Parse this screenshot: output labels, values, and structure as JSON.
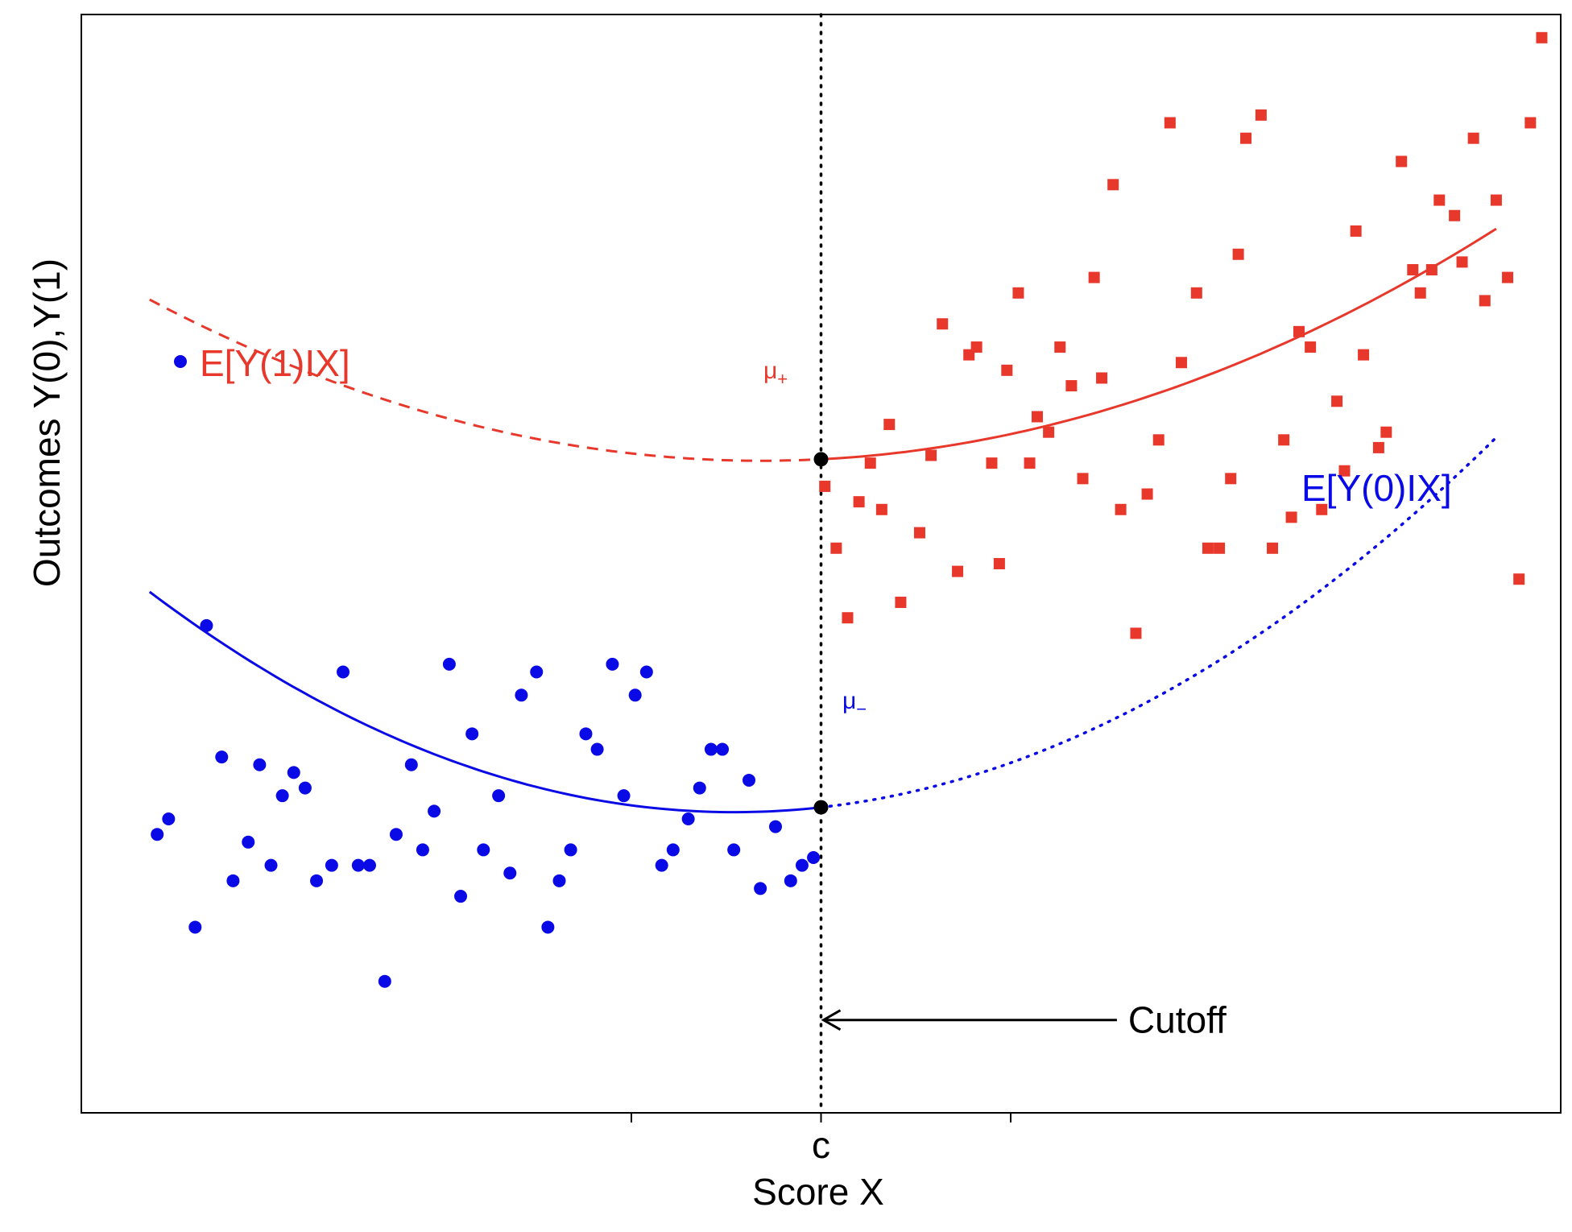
{
  "chart_data": {
    "type": "scatter",
    "title": "",
    "xlabel": "Score X",
    "ylabel": "Outcomes Y(0),Y(1)",
    "x_ticks": [
      {
        "x": -5,
        "label": ""
      },
      {
        "x": 0,
        "label": "c"
      },
      {
        "x": 5,
        "label": ""
      }
    ],
    "xlim": [
      -19.5,
      19.5
    ],
    "ylim": [
      -24,
      118
    ],
    "grid": false,
    "cutoff": {
      "x": 0,
      "label": "Cutoff",
      "arrow_from_x": 7.8,
      "y": -12
    },
    "colors": {
      "treated": "#e8382c",
      "control": "#0a0ae6",
      "black": "#000000"
    },
    "treated_points": {
      "x": [
        0.1,
        0.4,
        0.7,
        1.0,
        1.3,
        1.6,
        1.8,
        2.1,
        2.6,
        2.9,
        3.2,
        3.6,
        3.9,
        4.1,
        4.5,
        4.7,
        4.9,
        5.2,
        5.5,
        5.7,
        6.0,
        6.3,
        6.6,
        6.9,
        7.2,
        7.4,
        7.7,
        7.9,
        8.3,
        8.6,
        8.9,
        9.2,
        9.5,
        9.9,
        10.2,
        10.5,
        10.8,
        11.0,
        11.2,
        11.6,
        11.9,
        12.2,
        12.4,
        12.6,
        12.9,
        13.2,
        13.6,
        13.8,
        14.1,
        14.3,
        14.7,
        14.9,
        15.3,
        15.6,
        15.8,
        16.1,
        16.3,
        16.7,
        16.9,
        17.2,
        17.5,
        17.8,
        18.1,
        18.4,
        18.7,
        19.0
      ],
      "y": [
        57,
        49,
        40,
        55,
        60,
        54,
        65,
        42,
        51,
        61,
        78,
        46,
        74,
        75,
        60,
        47,
        72,
        82,
        60,
        66,
        64,
        75,
        70,
        58,
        84,
        71,
        96,
        54,
        38,
        56,
        63,
        104,
        73,
        82,
        49,
        49,
        58,
        87,
        102,
        105,
        49,
        63,
        53,
        77,
        75,
        54,
        68,
        59,
        90,
        74,
        62,
        64,
        99,
        85,
        82,
        85,
        94,
        92,
        86,
        102,
        81,
        94,
        84,
        45,
        104,
        115
      ]
    },
    "control_points": {
      "x": [
        -17.5,
        -17.2,
        -16.5,
        -16.2,
        -15.8,
        -15.5,
        -15.1,
        -14.8,
        -14.5,
        -14.2,
        -13.9,
        -13.6,
        -13.3,
        -12.9,
        -12.6,
        -12.2,
        -11.9,
        -11.5,
        -11.2,
        -10.8,
        -10.5,
        -10.2,
        -9.8,
        -9.5,
        -9.2,
        -8.9,
        -8.5,
        -8.2,
        -7.9,
        -7.5,
        -7.2,
        -6.9,
        -6.6,
        -6.2,
        -5.9,
        -5.5,
        -5.2,
        -4.9,
        -4.6,
        -4.2,
        -3.9,
        -3.5,
        -3.2,
        -2.9,
        -2.6,
        -2.3,
        -1.9,
        -1.6,
        -1.2,
        -0.8,
        -0.5,
        -0.2
      ],
      "y": [
        12,
        14,
        0,
        39,
        22,
        6,
        11,
        21,
        8,
        17,
        20,
        18,
        6,
        8,
        33,
        8,
        8,
        -7,
        12,
        21,
        10,
        15,
        34,
        4,
        25,
        10,
        17,
        7,
        30,
        33,
        0,
        6,
        10,
        25,
        23,
        34,
        17,
        30,
        33,
        8,
        10,
        14,
        18,
        23,
        23,
        10,
        19,
        5,
        13,
        6,
        8,
        9
      ]
    },
    "treated_curve": {
      "name": "E[Y(1)|X]",
      "label": "E[Y(1)IX]",
      "coeffs": [
        60.5,
        0.25,
        0.08
      ],
      "solid_range": [
        0,
        17.8
      ],
      "dashed_range": [
        -17.7,
        0
      ]
    },
    "control_curve": {
      "name": "E[Y(0)|X]",
      "label": "E[Y(0)IX]",
      "coeffs": [
        15.5,
        0.55,
        0.12
      ],
      "solid_range": [
        -17.7,
        0
      ],
      "dotted_range": [
        0,
        17.8
      ]
    },
    "mu_plus": {
      "label": "μ",
      "sub": "+",
      "y": 60.5
    },
    "mu_minus": {
      "label": "μ",
      "sub": "−",
      "y": 15.5
    },
    "legend": {
      "placement": "top-left",
      "label": "E[Y(1)IX]"
    }
  }
}
